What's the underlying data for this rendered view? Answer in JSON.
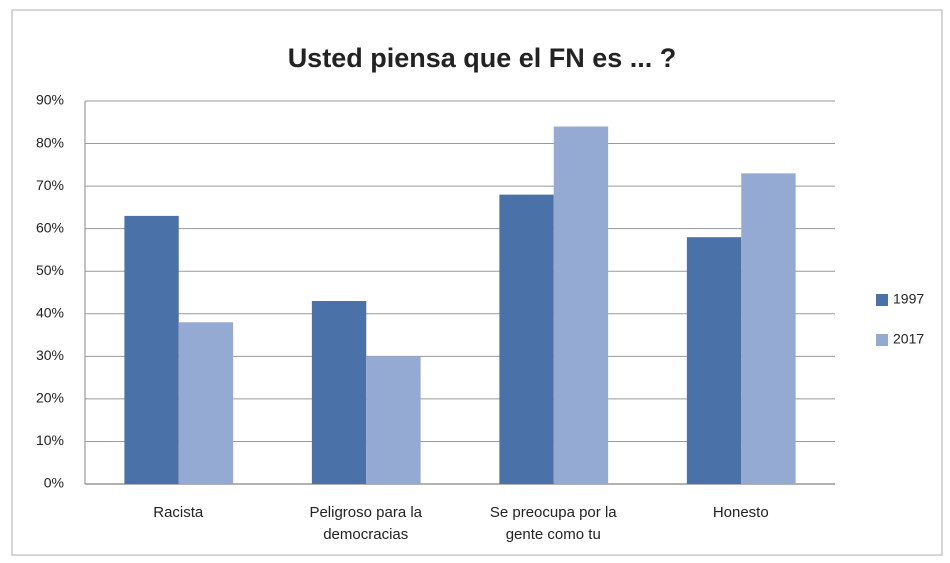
{
  "chart_data": {
    "type": "bar",
    "title": "Usted piensa que el FN es ... ?",
    "categories": [
      "Racista",
      "Peligroso para la democracias",
      "Se preocupa por la gente como tu",
      "Honesto"
    ],
    "series": [
      {
        "name": "1997",
        "color": "#4a71a8",
        "values": [
          63,
          43,
          68,
          58
        ]
      },
      {
        "name": "2017",
        "color": "#95aad3",
        "values": [
          38,
          30,
          84,
          73
        ]
      }
    ],
    "ylim": [
      0,
      90
    ],
    "yticks": [
      {
        "value": 0,
        "label": "0%"
      },
      {
        "value": 10,
        "label": "10%"
      },
      {
        "value": 20,
        "label": "20%"
      },
      {
        "value": 30,
        "label": "30%"
      },
      {
        "value": 40,
        "label": "40%"
      },
      {
        "value": 50,
        "label": "50%"
      },
      {
        "value": 60,
        "label": "60%"
      },
      {
        "value": 70,
        "label": "70%"
      },
      {
        "value": 80,
        "label": "80%"
      },
      {
        "value": 90,
        "label": "90%"
      }
    ],
    "grid": true,
    "legend": "right"
  }
}
